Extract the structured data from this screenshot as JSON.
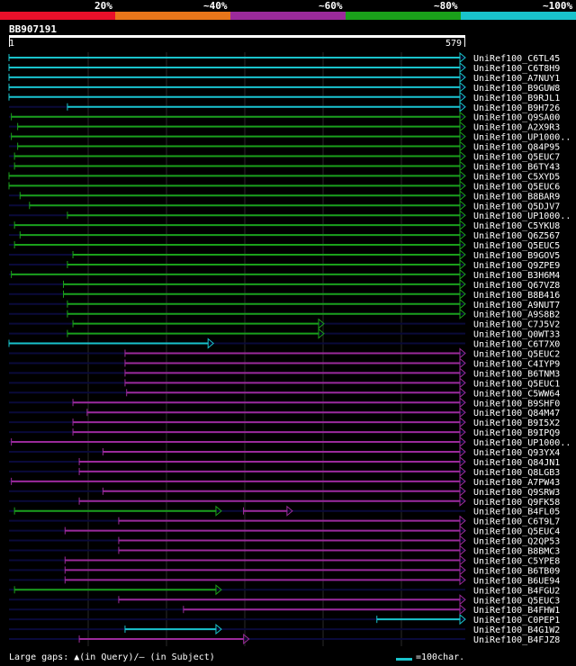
{
  "legend": {
    "segments": [
      {
        "color": "#e8102a",
        "label": "20%"
      },
      {
        "color": "#e8761a",
        "label": "~40%"
      },
      {
        "color": "#9b2a9b",
        "label": "~60%"
      },
      {
        "color": "#1aa01a",
        "label": "~80%"
      },
      {
        "color": "#19c3cc",
        "label": "~100%"
      }
    ]
  },
  "query": {
    "name": "BB907191",
    "start": "1",
    "end": "579"
  },
  "colors": {
    "cyan": "#19c3cc",
    "green": "#1aa01a",
    "purple": "#9b2a9b",
    "track": "#0a0a3a",
    "grid": "#2a2a2a"
  },
  "query_length": 579,
  "hits": [
    {
      "name": "UniRef100_C6TL45",
      "color": "cyan",
      "start": 1,
      "end": 579
    },
    {
      "name": "UniRef100_C6T8H9",
      "color": "cyan",
      "start": 1,
      "end": 579
    },
    {
      "name": "UniRef100_A7NUY1",
      "color": "cyan",
      "start": 1,
      "end": 579
    },
    {
      "name": "UniRef100_B9GUW8",
      "color": "cyan",
      "start": 1,
      "end": 579
    },
    {
      "name": "UniRef100_B9RJL1",
      "color": "cyan",
      "start": 1,
      "end": 579
    },
    {
      "name": "UniRef100_B9H726",
      "color": "cyan",
      "start": 75,
      "end": 579
    },
    {
      "name": "UniRef100_Q9SA00",
      "color": "green",
      "start": 4,
      "end": 579
    },
    {
      "name": "UniRef100_A2X9R3",
      "color": "green",
      "start": 12,
      "end": 579
    },
    {
      "name": "UniRef100_UP1000..",
      "color": "green",
      "start": 4,
      "end": 579
    },
    {
      "name": "UniRef100_Q84P95",
      "color": "green",
      "start": 12,
      "end": 579
    },
    {
      "name": "UniRef100_Q5EUC7",
      "color": "green",
      "start": 8,
      "end": 579
    },
    {
      "name": "UniRef100_B6TY43",
      "color": "green",
      "start": 8,
      "end": 579
    },
    {
      "name": "UniRef100_C5XYD5",
      "color": "green",
      "start": 1,
      "end": 579
    },
    {
      "name": "UniRef100_Q5EUC6",
      "color": "green",
      "start": 1,
      "end": 579
    },
    {
      "name": "UniRef100_B8BAR9",
      "color": "green",
      "start": 15,
      "end": 579
    },
    {
      "name": "UniRef100_Q5DJV7",
      "color": "green",
      "start": 27,
      "end": 579
    },
    {
      "name": "UniRef100_UP1000..",
      "color": "green",
      "start": 75,
      "end": 579
    },
    {
      "name": "UniRef100_C5YKU8",
      "color": "green",
      "start": 8,
      "end": 579
    },
    {
      "name": "UniRef100_Q6Z567",
      "color": "green",
      "start": 15,
      "end": 579
    },
    {
      "name": "UniRef100_Q5EUC5",
      "color": "green",
      "start": 8,
      "end": 579
    },
    {
      "name": "UniRef100_B9GOV5",
      "color": "green",
      "start": 82,
      "end": 579
    },
    {
      "name": "UniRef100_Q9ZPE9",
      "color": "green",
      "start": 75,
      "end": 579
    },
    {
      "name": "UniRef100_B3H6M4",
      "color": "green",
      "start": 4,
      "end": 579
    },
    {
      "name": "UniRef100_Q67VZ8",
      "color": "green",
      "start": 70,
      "end": 579
    },
    {
      "name": "UniRef100_B8B416",
      "color": "green",
      "start": 70,
      "end": 579
    },
    {
      "name": "UniRef100_A9NUT7",
      "color": "green",
      "start": 75,
      "end": 579
    },
    {
      "name": "UniRef100_A9S8B2",
      "color": "green",
      "start": 75,
      "end": 579
    },
    {
      "name": "UniRef100_C7J5V2",
      "color": "green",
      "start": 82,
      "end": 400
    },
    {
      "name": "UniRef100_Q0WT33",
      "color": "green",
      "start": 75,
      "end": 400
    },
    {
      "name": "UniRef100_C6T7X0",
      "color": "cyan",
      "start": 1,
      "end": 260
    },
    {
      "name": "UniRef100_Q5EUC2",
      "color": "purple",
      "start": 148,
      "end": 579
    },
    {
      "name": "UniRef100_C4IYP9",
      "color": "purple",
      "start": 148,
      "end": 579
    },
    {
      "name": "UniRef100_B6TNM3",
      "color": "purple",
      "start": 148,
      "end": 579
    },
    {
      "name": "UniRef100_Q5EUC1",
      "color": "purple",
      "start": 148,
      "end": 579
    },
    {
      "name": "UniRef100_C5WW64",
      "color": "purple",
      "start": 150,
      "end": 579
    },
    {
      "name": "UniRef100_B9SHF0",
      "color": "purple",
      "start": 82,
      "end": 579
    },
    {
      "name": "UniRef100_Q84M47",
      "color": "purple",
      "start": 100,
      "end": 579
    },
    {
      "name": "UniRef100_B9I5X2",
      "color": "purple",
      "start": 82,
      "end": 579
    },
    {
      "name": "UniRef100_B9IPQ9",
      "color": "purple",
      "start": 82,
      "end": 579
    },
    {
      "name": "UniRef100_UP1000..",
      "color": "purple",
      "start": 4,
      "end": 579
    },
    {
      "name": "UniRef100_Q93YX4",
      "color": "purple",
      "start": 120,
      "end": 579
    },
    {
      "name": "UniRef100_Q84JN1",
      "color": "purple",
      "start": 90,
      "end": 579
    },
    {
      "name": "UniRef100_Q8LGB3",
      "color": "purple",
      "start": 90,
      "end": 579
    },
    {
      "name": "UniRef100_A7PW43",
      "color": "purple",
      "start": 4,
      "end": 579
    },
    {
      "name": "UniRef100_Q9SRW3",
      "color": "purple",
      "start": 120,
      "end": 579
    },
    {
      "name": "UniRef100_Q9FK58",
      "color": "purple",
      "start": 90,
      "end": 579
    },
    {
      "name": "UniRef100_B4FL05",
      "color": "green",
      "start": 8,
      "end": 270,
      "start2": 298,
      "end2": 360,
      "color2": "purple"
    },
    {
      "name": "UniRef100_C6T9L7",
      "color": "purple",
      "start": 140,
      "end": 579
    },
    {
      "name": "UniRef100_Q5EUC4",
      "color": "purple",
      "start": 72,
      "end": 579
    },
    {
      "name": "UniRef100_Q2QP53",
      "color": "purple",
      "start": 140,
      "end": 579
    },
    {
      "name": "UniRef100_B8BMC3",
      "color": "purple",
      "start": 140,
      "end": 579
    },
    {
      "name": "UniRef100_C5YPE8",
      "color": "purple",
      "start": 72,
      "end": 579
    },
    {
      "name": "UniRef100_B6TB09",
      "color": "purple",
      "start": 72,
      "end": 579
    },
    {
      "name": "UniRef100_B6UE94",
      "color": "purple",
      "start": 72,
      "end": 579
    },
    {
      "name": "UniRef100_B4FGU2",
      "color": "green",
      "start": 8,
      "end": 270
    },
    {
      "name": "UniRef100_Q5EUC3",
      "color": "purple",
      "start": 140,
      "end": 579
    },
    {
      "name": "UniRef100_B4FHW1",
      "color": "purple",
      "start": 222,
      "end": 579
    },
    {
      "name": "UniRef100_C0PEP1",
      "color": "cyan",
      "start": 467,
      "end": 579
    },
    {
      "name": "UniRef100_B4G1W2",
      "color": "cyan",
      "start": 148,
      "end": 270
    },
    {
      "name": "UniRef100_B4FJZ8",
      "color": "purple",
      "start": 90,
      "end": 305
    }
  ],
  "footer": {
    "large_gaps": "Large gaps: ▲(in Query)/– (in Subject)",
    "scale": "=100char."
  }
}
